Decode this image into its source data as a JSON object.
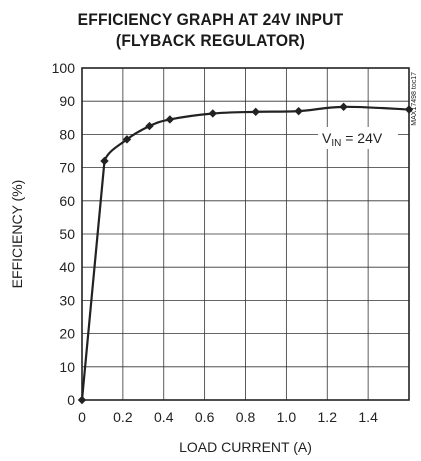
{
  "chart_data": {
    "type": "line",
    "title_line1": "EFFICIENCY GRAPH AT 24V INPUT",
    "title_line2": "(FLYBACK REGULATOR)",
    "xlabel": "LOAD CURRENT (A)",
    "ylabel": "EFFICIENCY (%)",
    "xlim": [
      0,
      1.6
    ],
    "ylim": [
      0,
      100
    ],
    "xticks": [
      "0",
      "0.2",
      "0.4",
      "0.6",
      "0.8",
      "1.0",
      "1.2",
      "1.4"
    ],
    "yticks": [
      "0",
      "10",
      "20",
      "30",
      "40",
      "50",
      "60",
      "70",
      "80",
      "90",
      "100"
    ],
    "grid": true,
    "annotation": {
      "main": "V",
      "sub": "IN",
      "rest": " = 24V"
    },
    "watermark": "MAX17498 toc17",
    "series": [
      {
        "x": [
          0,
          0.11,
          0.22,
          0.33,
          0.43,
          0.64,
          0.85,
          1.06,
          1.28,
          1.6
        ],
        "y": [
          0,
          72,
          78.5,
          82.5,
          84.5,
          86.3,
          86.8,
          87,
          88.3,
          87.5
        ]
      }
    ]
  }
}
